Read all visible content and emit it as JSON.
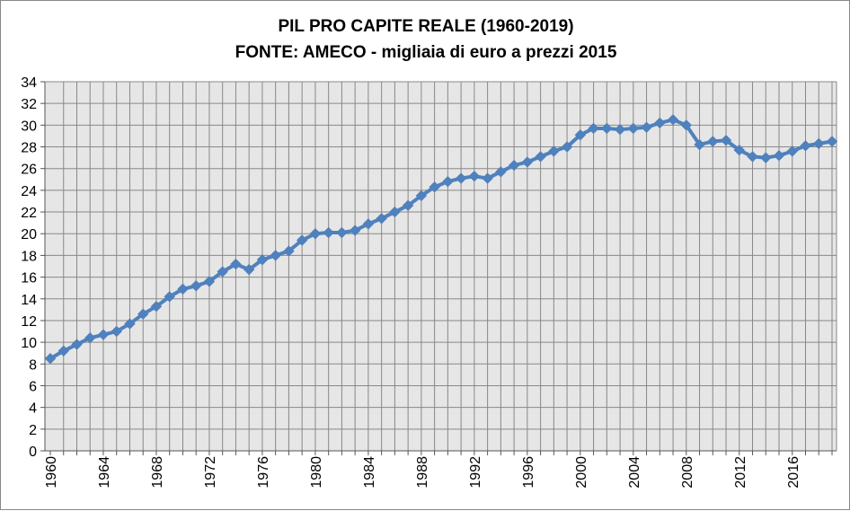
{
  "chart_data": {
    "type": "line",
    "title": "PIL PRO CAPITE REALE (1960-2019)",
    "subtitle": "FONTE: AMECO - migliaia di euro a prezzi 2015",
    "xlabel": "",
    "ylabel": "",
    "ylim": [
      0,
      34
    ],
    "xlim": [
      1960,
      2019
    ],
    "y_ticks": [
      "0",
      "2",
      "4",
      "6",
      "8",
      "10",
      "12",
      "14",
      "16",
      "18",
      "20",
      "22",
      "24",
      "26",
      "28",
      "30",
      "32",
      "34"
    ],
    "x_ticks": [
      "1960",
      "1964",
      "1968",
      "1972",
      "1976",
      "1980",
      "1984",
      "1988",
      "1992",
      "1996",
      "2000",
      "2004",
      "2008",
      "2012",
      "2016"
    ],
    "grid": true,
    "legend": "none",
    "colors": {
      "line": "#4f81bd",
      "plot_bg": "#e6e6e6",
      "grid": "#888888"
    },
    "series": [
      {
        "x": [
          1960,
          1961,
          1962,
          1963,
          1964,
          1965,
          1966,
          1967,
          1968,
          1969,
          1970,
          1971,
          1972,
          1973,
          1974,
          1975,
          1976,
          1977,
          1978,
          1979,
          1980,
          1981,
          1982,
          1983,
          1984,
          1985,
          1986,
          1987,
          1988,
          1989,
          1990,
          1991,
          1992,
          1993,
          1994,
          1995,
          1996,
          1997,
          1998,
          1999,
          2000,
          2001,
          2002,
          2003,
          2004,
          2005,
          2006,
          2007,
          2008,
          2009,
          2010,
          2011,
          2012,
          2013,
          2014,
          2015,
          2016,
          2017,
          2018,
          2019
        ],
        "values": [
          8.5,
          9.2,
          9.8,
          10.4,
          10.7,
          11.0,
          11.7,
          12.6,
          13.3,
          14.2,
          14.9,
          15.2,
          15.6,
          16.5,
          17.2,
          16.7,
          17.6,
          18.0,
          18.4,
          19.4,
          20.0,
          20.1,
          20.1,
          20.3,
          20.9,
          21.4,
          22.0,
          22.6,
          23.5,
          24.3,
          24.8,
          25.1,
          25.3,
          25.1,
          25.7,
          26.3,
          26.6,
          27.1,
          27.6,
          28.0,
          29.1,
          29.7,
          29.7,
          29.6,
          29.7,
          29.8,
          30.2,
          30.5,
          30.0,
          28.2,
          28.5,
          28.6,
          27.7,
          27.1,
          27.0,
          27.2,
          27.6,
          28.1,
          28.3,
          28.5
        ]
      }
    ]
  }
}
